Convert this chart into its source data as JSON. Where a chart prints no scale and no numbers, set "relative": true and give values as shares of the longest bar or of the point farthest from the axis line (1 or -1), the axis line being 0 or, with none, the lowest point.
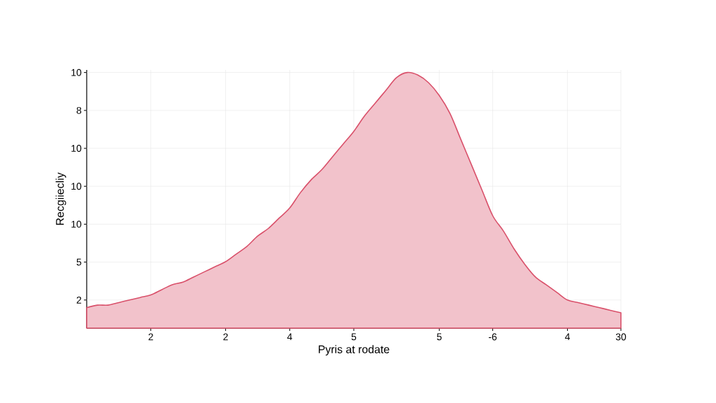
{
  "chart_data": {
    "type": "area",
    "xlabel": "Pyris at rodate",
    "ylabel": "Recgiiecliy",
    "relative": true,
    "categories": [
      null,
      null,
      null,
      null,
      null,
      null,
      "2",
      null,
      null,
      null,
      null,
      null,
      null,
      "2",
      null,
      null,
      null,
      null,
      null,
      "4",
      null,
      null,
      null,
      null,
      null,
      "5",
      null,
      null,
      null,
      null,
      null,
      null,
      null,
      "5",
      null,
      null,
      null,
      null,
      "-6",
      null,
      null,
      null,
      null,
      null,
      null,
      "4",
      null,
      null,
      null,
      null,
      "30"
    ],
    "series": [
      {
        "color": "#d9506a",
        "values": [
          0.08,
          0.09,
          0.09,
          0.1,
          0.11,
          0.12,
          0.13,
          0.15,
          0.17,
          0.18,
          0.2,
          0.22,
          0.24,
          0.26,
          0.29,
          0.32,
          0.36,
          0.39,
          0.43,
          0.47,
          0.53,
          0.58,
          0.62,
          0.67,
          0.72,
          0.77,
          0.83,
          0.88,
          0.93,
          0.98,
          1,
          0.99,
          0.96,
          0.91,
          0.84,
          0.74,
          0.64,
          0.54,
          0.44,
          0.38,
          0.31,
          0.25,
          0.2,
          0.17,
          0.14,
          0.11,
          0.1,
          0.09,
          0.08,
          0.07,
          0.06
        ]
      }
    ],
    "annotations": [
      "2",
      "5",
      "10",
      "10",
      "10",
      "8",
      "10"
    ],
    "grid": true
  }
}
